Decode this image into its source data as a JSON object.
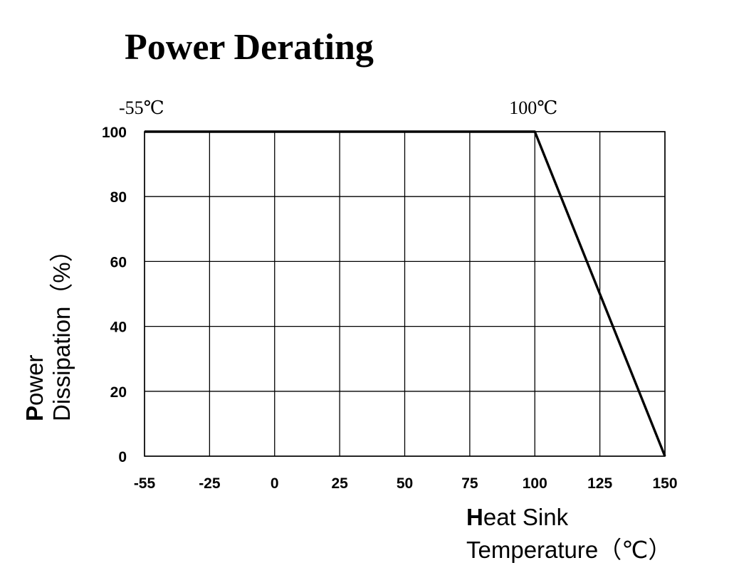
{
  "chart_data": {
    "type": "line",
    "title": "Power Derating",
    "xlabel_lead": "H",
    "xlabel_line1_rest": "eat Sink",
    "xlabel_line2": "Temperature（℃）",
    "ylabel_lead": "P",
    "ylabel_line1_rest": "ower",
    "ylabel_line2": "Dissipation（%）",
    "xticks": [
      -55,
      -25,
      0,
      25,
      50,
      75,
      100,
      125,
      150
    ],
    "xtick_labels": [
      "-55",
      "-25",
      "0",
      "25",
      "50",
      "75",
      "100",
      "125",
      "150"
    ],
    "yticks": [
      0,
      20,
      40,
      60,
      80,
      100
    ],
    "ytick_labels": [
      "0",
      "20",
      "40",
      "60",
      "80",
      "100"
    ],
    "xlim": [
      -55,
      150
    ],
    "ylim": [
      0,
      100
    ],
    "grid": true,
    "annotations": [
      {
        "text": "-55℃",
        "x": -55
      },
      {
        "text": "100℃",
        "x": 100
      }
    ],
    "series": [
      {
        "x": [
          -55,
          100,
          150
        ],
        "y": [
          100,
          100,
          0
        ]
      }
    ]
  }
}
